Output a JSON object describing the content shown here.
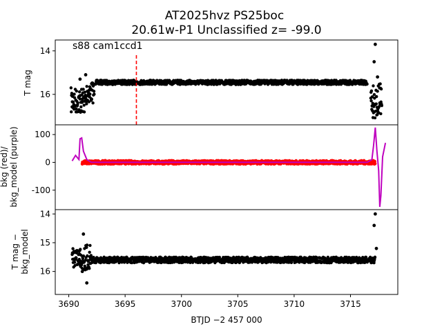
{
  "title_line1": "AT2025hvz  PS25boc",
  "title_line2": "20.61w-P1 Unclassified z= -99.0",
  "chart_data": [
    {
      "type": "scatter",
      "panel": "top",
      "annotation": "s88 cam1ccd1",
      "ylabel": "T mag",
      "ylim": [
        17.4,
        13.5
      ],
      "yticks": [
        14,
        16
      ],
      "xlim": [
        3688.8,
        3719.2
      ],
      "marker_line_x": 3696.0,
      "marker_line_color": "#ff0000",
      "series": [
        {
          "name": "photometry",
          "color": "#000000",
          "segments": [
            {
              "x0": 3690.2,
              "x1": 3691.6,
              "center": 16.3,
              "spread": 0.6
            },
            {
              "x0": 3691.6,
              "x1": 3692.3,
              "center": 15.9,
              "spread": 0.5
            },
            {
              "x0": 3692.3,
              "x1": 3716.5,
              "center": 15.45,
              "spread": 0.1
            },
            {
              "x0": 3716.8,
              "x1": 3717.8,
              "center": 16.3,
              "spread": 0.8
            }
          ],
          "outliers": [
            [
              3717.2,
              13.7
            ],
            [
              3717.1,
              14.5
            ],
            [
              3717.4,
              15.2
            ],
            [
              3691.5,
              15.1
            ],
            [
              3691.0,
              15.3
            ]
          ]
        }
      ]
    },
    {
      "type": "line",
      "panel": "middle",
      "ylabel_lines": [
        "bkg (red)/",
        "bkg_model (purple)"
      ],
      "ylim": [
        -170,
        135
      ],
      "yticks": [
        -100,
        0,
        100
      ],
      "xlim": [
        3688.8,
        3719.2
      ],
      "series": [
        {
          "name": "bkg",
          "color": "#ff0000",
          "x0": 3691.2,
          "x1": 3717.2,
          "value": 0,
          "spread": 6
        },
        {
          "name": "bkg_model",
          "color": "#bf00bf",
          "x": [
            3690.3,
            3690.6,
            3690.9,
            3691.0,
            3691.15,
            3691.3,
            3691.6,
            3692.0,
            3693.0,
            3700.0,
            3705.0,
            3710.0,
            3716.5,
            3716.9,
            3717.05,
            3717.2,
            3717.35,
            3717.5,
            3717.6,
            3717.7,
            3717.85,
            3718.1
          ],
          "y": [
            5,
            25,
            10,
            85,
            88,
            40,
            10,
            0,
            0,
            0,
            0,
            0,
            0,
            10,
            60,
            125,
            40,
            -30,
            -160,
            -120,
            20,
            70
          ]
        }
      ]
    },
    {
      "type": "scatter",
      "panel": "bottom",
      "ylabel_lines": [
        "T mag −",
        "bkg_model"
      ],
      "ylim": [
        16.8,
        13.85
      ],
      "yticks": [
        14,
        15,
        16
      ],
      "xlim": [
        3688.8,
        3719.2
      ],
      "xticks": [
        3690,
        3695,
        3700,
        3705,
        3710,
        3715
      ],
      "xlabel": "BTJD −2 457 000",
      "series": [
        {
          "name": "residual",
          "color": "#000000",
          "segments": [
            {
              "x0": 3690.3,
              "x1": 3691.0,
              "center": 15.5,
              "spread": 0.35
            },
            {
              "x0": 3691.0,
              "x1": 3692.0,
              "center": 15.5,
              "spread": 0.45
            },
            {
              "x0": 3692.0,
              "x1": 3717.2,
              "center": 15.6,
              "spread": 0.1
            }
          ],
          "outliers": [
            [
              3717.2,
              14.0
            ],
            [
              3717.1,
              14.4
            ],
            [
              3717.3,
              15.2
            ],
            [
              3691.3,
              14.7
            ],
            [
              3691.6,
              16.4
            ],
            [
              3691.2,
              16.0
            ]
          ]
        }
      ]
    }
  ]
}
